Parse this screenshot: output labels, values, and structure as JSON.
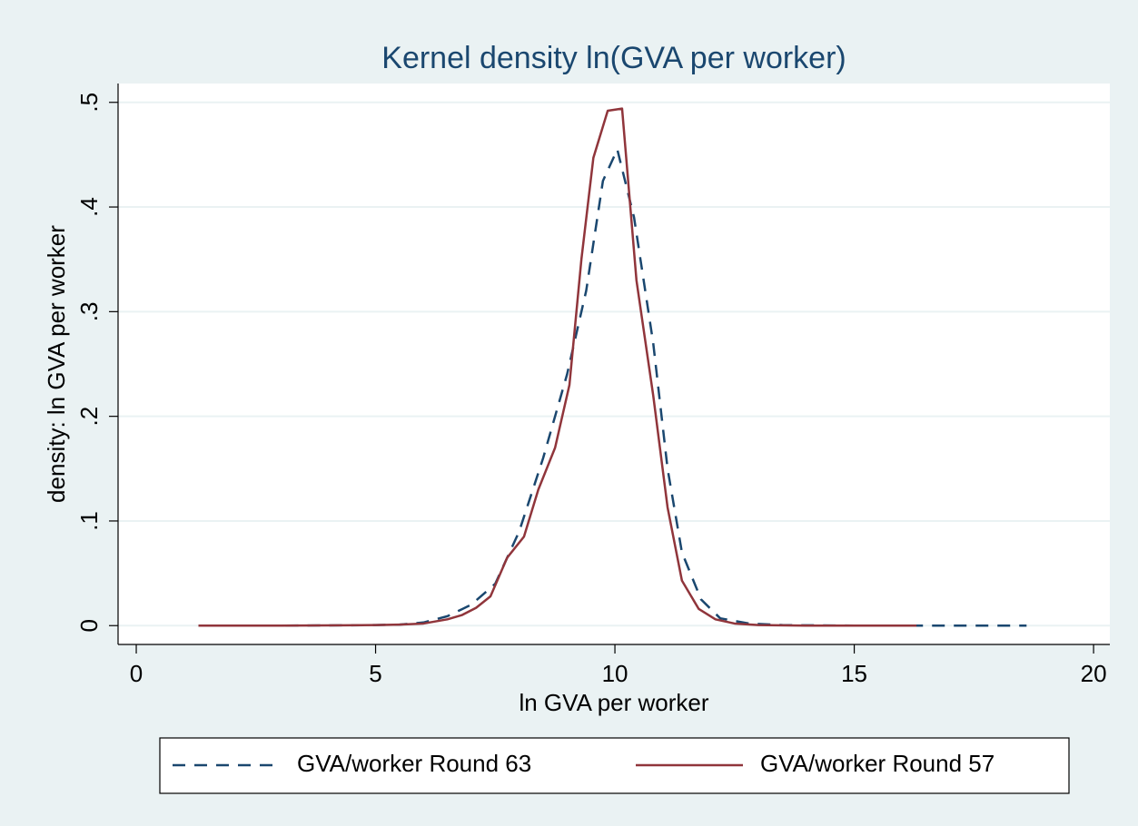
{
  "chart_data": {
    "type": "line",
    "title": "Kernel density ln(GVA per worker)",
    "xlabel": "ln GVA per worker",
    "ylabel": "density: ln GVA per worker",
    "xlim": [
      -0.38,
      20.34
    ],
    "ylim": [
      -0.018,
      0.518
    ],
    "xticks": [
      0,
      5,
      10,
      15,
      20
    ],
    "yticks": [
      0,
      {
        "value": 0.1,
        "label": ".1"
      },
      {
        "value": 0.2,
        "label": ".2"
      },
      {
        "value": 0.3,
        "label": ".3"
      },
      {
        "value": 0.4,
        "label": ".4"
      },
      {
        "value": 0.5,
        "label": ".5"
      }
    ],
    "grid": true,
    "legend": "bottom",
    "series": [
      {
        "name": "GVA/worker Round 63",
        "color": "#1a476f",
        "dash": true,
        "x": [
          1.3,
          3,
          5,
          5.5,
          6,
          6.5,
          7,
          7.5,
          8,
          8.5,
          9,
          9.4,
          9.75,
          10.05,
          10.4,
          10.8,
          11.1,
          11.4,
          11.8,
          12.2,
          12.8,
          13.5,
          15,
          17,
          18.6
        ],
        "values": [
          0,
          0,
          0.0005,
          0.001,
          0.003,
          0.009,
          0.02,
          0.04,
          0.09,
          0.16,
          0.24,
          0.32,
          0.425,
          0.455,
          0.39,
          0.27,
          0.15,
          0.07,
          0.025,
          0.007,
          0.002,
          0.0005,
          0,
          0,
          0
        ]
      },
      {
        "name": "GVA/worker Round 57",
        "color": "#90353b",
        "dash": false,
        "x": [
          1.3,
          3,
          5,
          5.5,
          6,
          6.5,
          6.8,
          7.1,
          7.4,
          7.75,
          8.1,
          8.4,
          8.75,
          9.05,
          9.3,
          9.55,
          9.85,
          10.15,
          10.45,
          10.8,
          11.1,
          11.4,
          11.75,
          12.1,
          12.5,
          13,
          14,
          16.3
        ],
        "values": [
          0,
          0,
          0.0005,
          0.001,
          0.002,
          0.006,
          0.01,
          0.017,
          0.028,
          0.065,
          0.085,
          0.13,
          0.17,
          0.23,
          0.35,
          0.447,
          0.492,
          0.494,
          0.33,
          0.22,
          0.113,
          0.043,
          0.016,
          0.006,
          0.002,
          0.0005,
          0,
          0
        ]
      }
    ]
  }
}
